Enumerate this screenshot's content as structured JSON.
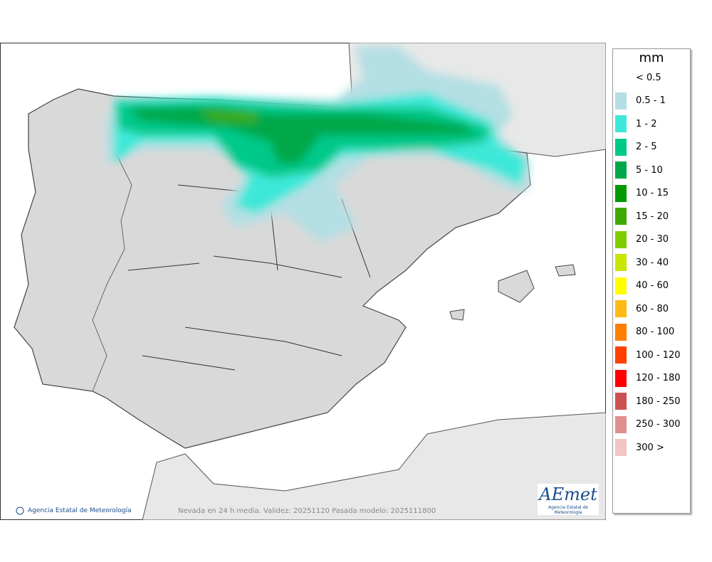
{
  "map": {
    "caption": "Nevada en 24 h media. Validez: 20251120 Pasada modelo: 2025111800",
    "credit": "Agencia Estatal de Meteorología",
    "logo": {
      "name": "AEmet",
      "subtitle": "Agencia Estatal de Meteorología"
    }
  },
  "legend": {
    "unit": "mm",
    "items": [
      {
        "label": "< 0.5",
        "color": "#ffffff"
      },
      {
        "label": "0.5 - 1",
        "color": "#b4dfe4"
      },
      {
        "label": "1 - 2",
        "color": "#3ee8d8"
      },
      {
        "label": "2 - 5",
        "color": "#00c98a"
      },
      {
        "label": "5 - 10",
        "color": "#00a84a"
      },
      {
        "label": "10 - 15",
        "color": "#009900"
      },
      {
        "label": "15 - 20",
        "color": "#3caa00"
      },
      {
        "label": "20 - 30",
        "color": "#80cc00"
      },
      {
        "label": "30 - 40",
        "color": "#c8e600"
      },
      {
        "label": "40 - 60",
        "color": "#ffff00"
      },
      {
        "label": "60 - 80",
        "color": "#ffb914"
      },
      {
        "label": "80 - 100",
        "color": "#ff7f00"
      },
      {
        "label": "100 - 120",
        "color": "#ff4000"
      },
      {
        "label": "120 - 180",
        "color": "#ff0000"
      },
      {
        "label": "180 - 250",
        "color": "#cc5252"
      },
      {
        "label": "250 - 300",
        "color": "#e08f8f"
      },
      {
        "label": "300 >",
        "color": "#f0c6c6"
      }
    ]
  }
}
